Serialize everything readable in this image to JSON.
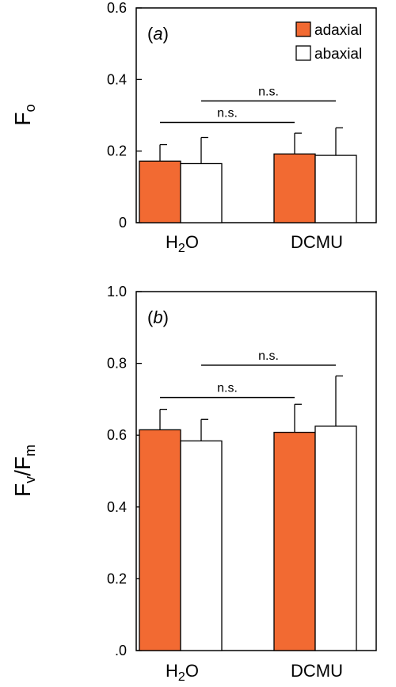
{
  "chart_data": [
    {
      "type": "bar",
      "panel_label": "a",
      "ylabel": {
        "main": "F",
        "sub": "o",
        "sub2": ""
      },
      "categories": [
        {
          "main": "H",
          "sub": "2",
          "tail": "O"
        },
        {
          "main": "DCMU",
          "sub": "",
          "tail": ""
        }
      ],
      "ylim": [
        0,
        0.6
      ],
      "yticks": [
        "0",
        "0.2",
        "0.4",
        "0.6"
      ],
      "series": [
        {
          "name": "adaxial",
          "color": "#f26a32",
          "values": [
            0.172,
            0.192
          ],
          "errors": [
            0.046,
            0.058
          ]
        },
        {
          "name": "abaxial",
          "color": "#ffffff",
          "values": [
            0.165,
            0.188
          ],
          "errors": [
            0.073,
            0.077
          ]
        }
      ],
      "annotations": [
        {
          "text": "n.s.",
          "y": 0.28,
          "from": "H2O adaxial",
          "to": "DCMU adaxial"
        },
        {
          "text": "n.s.",
          "y": 0.34,
          "from": "H2O abaxial",
          "to": "DCMU abaxial"
        }
      ],
      "legend": "top-right",
      "grid": false
    },
    {
      "type": "bar",
      "panel_label": "b",
      "ylabel": {
        "main": "F",
        "sub": "v",
        "mid": "/F",
        "sub2": "m"
      },
      "categories": [
        {
          "main": "H",
          "sub": "2",
          "tail": "O"
        },
        {
          "main": "DCMU",
          "sub": "",
          "tail": ""
        }
      ],
      "ylim": [
        0,
        1.0
      ],
      "yticks": [
        ".0",
        "0.2",
        "0.4",
        "0.6",
        "0.8",
        "1.0"
      ],
      "series": [
        {
          "name": "adaxial",
          "color": "#f26a32",
          "values": [
            0.615,
            0.608
          ],
          "errors": [
            0.057,
            0.078
          ]
        },
        {
          "name": "abaxial",
          "color": "#ffffff",
          "values": [
            0.584,
            0.625
          ],
          "errors": [
            0.06,
            0.14
          ]
        }
      ],
      "annotations": [
        {
          "text": "n.s.",
          "y": 0.705,
          "from": "H2O adaxial",
          "to": "DCMU adaxial"
        },
        {
          "text": "n.s.",
          "y": 0.795,
          "from": "H2O abaxial",
          "to": "DCMU abaxial"
        }
      ],
      "grid": false
    }
  ]
}
